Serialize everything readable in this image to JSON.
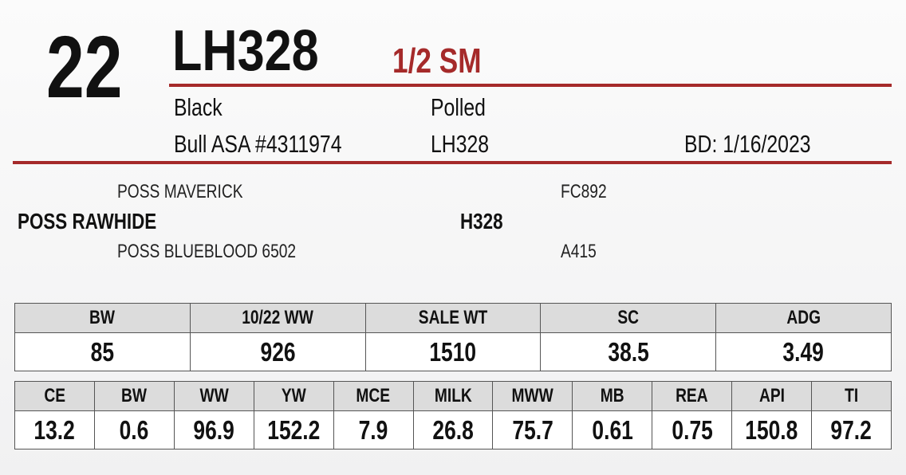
{
  "header": {
    "lot": "22",
    "name": "LH328",
    "breed": "1/2 SM",
    "color": "Black",
    "horn": "Polled",
    "registration": "Bull ASA #4311974",
    "tattoo": "LH328",
    "birth_date": "BD: 1/16/2023"
  },
  "pedigree": {
    "sire_sire": "POSS MAVERICK",
    "sire": "POSS RAWHIDE",
    "sire_dam": "POSS BLUEBLOOD 6502",
    "dam_sire": "FC892",
    "dam": "H328",
    "dam_dam": "A415"
  },
  "performance": {
    "headers": [
      "BW",
      "10/22 WW",
      "SALE WT",
      "SC",
      "ADG"
    ],
    "values": [
      "85",
      "926",
      "1510",
      "38.5",
      "3.49"
    ]
  },
  "epds": {
    "headers": [
      "CE",
      "BW",
      "WW",
      "YW",
      "MCE",
      "MILK",
      "MWW",
      "MB",
      "REA",
      "API",
      "TI"
    ],
    "values": [
      "13.2",
      "0.6",
      "96.9",
      "152.2",
      "7.9",
      "26.8",
      "75.7",
      "0.61",
      "0.75",
      "150.8",
      "97.2"
    ]
  }
}
